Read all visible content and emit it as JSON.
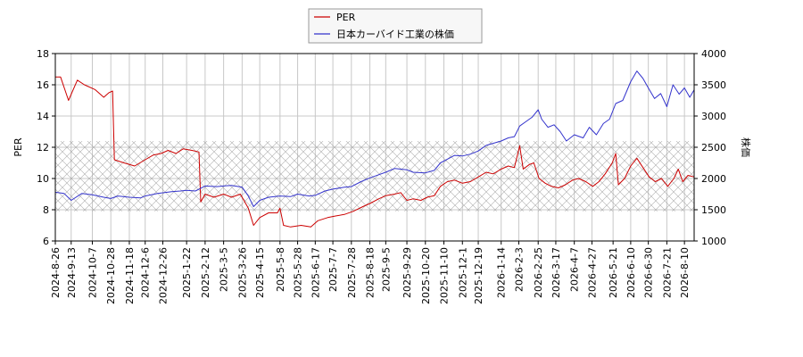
{
  "chart_data": {
    "type": "line",
    "y_left_label": "PER",
    "y_right_label": "株価",
    "ylim_left": [
      6,
      18
    ],
    "ylim_right": [
      1000,
      4000
    ],
    "y_left_ticks": [
      6,
      8,
      10,
      12,
      14,
      16,
      18
    ],
    "y_right_ticks": [
      1000,
      1500,
      2000,
      2500,
      3000,
      3500,
      4000
    ],
    "x_ticks": [
      "2024-8-26",
      "2024-9-13",
      "2024-10-7",
      "2024-10-28",
      "2024-11-18",
      "2024-12-6",
      "2024-12-26",
      "2025-1-22",
      "2025-2-12",
      "2025-3-5",
      "2025-3-26",
      "2025-4-15",
      "2025-5-8",
      "2025-5-28",
      "2025-6-17",
      "2025-7-7",
      "2025-7-28",
      "2025-8-18",
      "2025-9-5",
      "2025-9-29",
      "2025-10-20",
      "2025-11-10",
      "2025-12-1",
      "2025-12-19",
      "2026-1-14",
      "2026-2-3",
      "2026-2-25",
      "2026-3-17",
      "2026-4-7",
      "2026-4-27",
      "2026-5-21",
      "2026-6-10",
      "2026-6-30",
      "2026-7-21",
      "2026-8-10"
    ],
    "x_range": [
      "2024-8-26",
      "2026-8-21"
    ],
    "hatch_band": [
      7.9,
      12.4
    ],
    "legend_position": "top-center",
    "series": [
      {
        "name": "PER",
        "color": "#cc0000",
        "axis": "left",
        "points": [
          [
            "2024-8-26",
            16.5
          ],
          [
            "2024-9-1",
            16.5
          ],
          [
            "2024-9-10",
            15.0
          ],
          [
            "2024-9-20",
            16.3
          ],
          [
            "2024-9-28",
            16.0
          ],
          [
            "2024-10-10",
            15.7
          ],
          [
            "2024-10-20",
            15.2
          ],
          [
            "2024-10-26",
            15.5
          ],
          [
            "2024-10-30",
            15.6
          ],
          [
            "2024-11-1",
            11.2
          ],
          [
            "2024-11-12",
            11.0
          ],
          [
            "2024-11-24",
            10.8
          ],
          [
            "2024-12-6",
            11.2
          ],
          [
            "2024-12-15",
            11.5
          ],
          [
            "2024-12-24",
            11.6
          ],
          [
            "2025-1-1",
            11.8
          ],
          [
            "2025-1-10",
            11.6
          ],
          [
            "2025-1-18",
            11.9
          ],
          [
            "2025-1-28",
            11.8
          ],
          [
            "2025-2-5",
            11.7
          ],
          [
            "2025-2-7",
            8.5
          ],
          [
            "2025-2-12",
            9.0
          ],
          [
            "2025-2-22",
            8.8
          ],
          [
            "2025-3-5",
            9.0
          ],
          [
            "2025-3-14",
            8.8
          ],
          [
            "2025-3-24",
            9.0
          ],
          [
            "2025-4-2",
            8.1
          ],
          [
            "2025-4-8",
            7.0
          ],
          [
            "2025-4-15",
            7.5
          ],
          [
            "2025-4-25",
            7.8
          ],
          [
            "2025-5-5",
            7.8
          ],
          [
            "2025-5-8",
            8.1
          ],
          [
            "2025-5-12",
            7.0
          ],
          [
            "2025-5-20",
            6.9
          ],
          [
            "2025-6-1",
            7.0
          ],
          [
            "2025-6-12",
            6.9
          ],
          [
            "2025-6-20",
            7.3
          ],
          [
            "2025-7-1",
            7.5
          ],
          [
            "2025-7-10",
            7.6
          ],
          [
            "2025-7-20",
            7.7
          ],
          [
            "2025-7-30",
            7.9
          ],
          [
            "2025-8-10",
            8.2
          ],
          [
            "2025-8-18",
            8.4
          ],
          [
            "2025-8-28",
            8.7
          ],
          [
            "2025-9-5",
            8.9
          ],
          [
            "2025-9-15",
            9.0
          ],
          [
            "2025-9-22",
            9.1
          ],
          [
            "2025-9-29",
            8.6
          ],
          [
            "2025-10-6",
            8.7
          ],
          [
            "2025-10-15",
            8.6
          ],
          [
            "2025-10-22",
            8.8
          ],
          [
            "2025-10-30",
            8.9
          ],
          [
            "2025-11-6",
            9.5
          ],
          [
            "2025-11-14",
            9.8
          ],
          [
            "2025-11-22",
            9.9
          ],
          [
            "2025-12-1",
            9.7
          ],
          [
            "2025-12-10",
            9.8
          ],
          [
            "2025-12-19",
            10.1
          ],
          [
            "2025-12-28",
            10.4
          ],
          [
            "2026-1-5",
            10.3
          ],
          [
            "2026-1-14",
            10.6
          ],
          [
            "2026-1-22",
            10.8
          ],
          [
            "2026-1-29",
            10.7
          ],
          [
            "2026-2-4",
            12.1
          ],
          [
            "2026-2-8",
            10.6
          ],
          [
            "2026-2-15",
            10.9
          ],
          [
            "2026-2-20",
            11.0
          ],
          [
            "2026-2-26",
            10.0
          ],
          [
            "2026-3-5",
            9.7
          ],
          [
            "2026-3-12",
            9.5
          ],
          [
            "2026-3-20",
            9.4
          ],
          [
            "2026-3-28",
            9.6
          ],
          [
            "2026-4-5",
            9.9
          ],
          [
            "2026-4-12",
            10.0
          ],
          [
            "2026-4-20",
            9.8
          ],
          [
            "2026-4-28",
            9.5
          ],
          [
            "2026-5-5",
            9.8
          ],
          [
            "2026-5-12",
            10.3
          ],
          [
            "2026-5-20",
            11.0
          ],
          [
            "2026-5-24",
            11.6
          ],
          [
            "2026-5-27",
            9.6
          ],
          [
            "2026-6-3",
            10.0
          ],
          [
            "2026-6-10",
            10.8
          ],
          [
            "2026-6-17",
            11.3
          ],
          [
            "2026-6-24",
            10.7
          ],
          [
            "2026-7-1",
            10.1
          ],
          [
            "2026-7-8",
            9.8
          ],
          [
            "2026-7-15",
            10.0
          ],
          [
            "2026-7-22",
            9.5
          ],
          [
            "2026-7-29",
            10.0
          ],
          [
            "2026-8-3",
            10.6
          ],
          [
            "2026-8-8",
            9.8
          ],
          [
            "2026-8-14",
            10.2
          ],
          [
            "2026-8-21",
            10.1
          ]
        ]
      },
      {
        "name": "日本カーバイド工業の株価",
        "color": "#3333cc",
        "axis": "right",
        "points": [
          [
            "2024-8-26",
            1780
          ],
          [
            "2024-9-5",
            1760
          ],
          [
            "2024-9-13",
            1650
          ],
          [
            "2024-9-25",
            1760
          ],
          [
            "2024-10-7",
            1740
          ],
          [
            "2024-10-20",
            1700
          ],
          [
            "2024-10-28",
            1680
          ],
          [
            "2024-11-5",
            1720
          ],
          [
            "2024-11-18",
            1700
          ],
          [
            "2024-12-1",
            1690
          ],
          [
            "2024-12-6",
            1720
          ],
          [
            "2024-12-20",
            1760
          ],
          [
            "2025-1-5",
            1790
          ],
          [
            "2025-1-15",
            1800
          ],
          [
            "2025-1-22",
            1810
          ],
          [
            "2025-2-1",
            1800
          ],
          [
            "2025-2-12",
            1880
          ],
          [
            "2025-2-25",
            1870
          ],
          [
            "2025-3-5",
            1880
          ],
          [
            "2025-3-14",
            1890
          ],
          [
            "2025-3-26",
            1860
          ],
          [
            "2025-4-2",
            1720
          ],
          [
            "2025-4-8",
            1550
          ],
          [
            "2025-4-15",
            1650
          ],
          [
            "2025-4-25",
            1700
          ],
          [
            "2025-5-8",
            1720
          ],
          [
            "2025-5-20",
            1710
          ],
          [
            "2025-5-28",
            1750
          ],
          [
            "2025-6-10",
            1720
          ],
          [
            "2025-6-17",
            1730
          ],
          [
            "2025-6-28",
            1800
          ],
          [
            "2025-7-7",
            1830
          ],
          [
            "2025-7-20",
            1860
          ],
          [
            "2025-7-28",
            1870
          ],
          [
            "2025-8-8",
            1950
          ],
          [
            "2025-8-18",
            2010
          ],
          [
            "2025-8-28",
            2060
          ],
          [
            "2025-9-5",
            2100
          ],
          [
            "2025-9-15",
            2160
          ],
          [
            "2025-9-29",
            2140
          ],
          [
            "2025-10-6",
            2100
          ],
          [
            "2025-10-20",
            2090
          ],
          [
            "2025-10-30",
            2130
          ],
          [
            "2025-11-6",
            2250
          ],
          [
            "2025-11-14",
            2310
          ],
          [
            "2025-11-22",
            2370
          ],
          [
            "2025-12-1",
            2360
          ],
          [
            "2025-12-10",
            2390
          ],
          [
            "2025-12-19",
            2440
          ],
          [
            "2025-12-28",
            2530
          ],
          [
            "2026-1-14",
            2600
          ],
          [
            "2026-1-22",
            2650
          ],
          [
            "2026-1-29",
            2670
          ],
          [
            "2026-2-4",
            2840
          ],
          [
            "2026-2-10",
            2900
          ],
          [
            "2026-2-18",
            2980
          ],
          [
            "2026-2-25",
            3100
          ],
          [
            "2026-3-1",
            2950
          ],
          [
            "2026-3-8",
            2820
          ],
          [
            "2026-3-15",
            2860
          ],
          [
            "2026-3-22",
            2750
          ],
          [
            "2026-3-29",
            2600
          ],
          [
            "2026-4-7",
            2700
          ],
          [
            "2026-4-17",
            2650
          ],
          [
            "2026-4-24",
            2820
          ],
          [
            "2026-5-2",
            2700
          ],
          [
            "2026-5-10",
            2880
          ],
          [
            "2026-5-17",
            2950
          ],
          [
            "2026-5-24",
            3200
          ],
          [
            "2026-6-1",
            3250
          ],
          [
            "2026-6-10",
            3550
          ],
          [
            "2026-6-17",
            3720
          ],
          [
            "2026-6-24",
            3600
          ],
          [
            "2026-6-30",
            3450
          ],
          [
            "2026-7-7",
            3280
          ],
          [
            "2026-7-14",
            3360
          ],
          [
            "2026-7-21",
            3150
          ],
          [
            "2026-7-28",
            3500
          ],
          [
            "2026-8-4",
            3350
          ],
          [
            "2026-8-10",
            3450
          ],
          [
            "2026-8-16",
            3300
          ],
          [
            "2026-8-21",
            3420
          ]
        ]
      }
    ]
  }
}
